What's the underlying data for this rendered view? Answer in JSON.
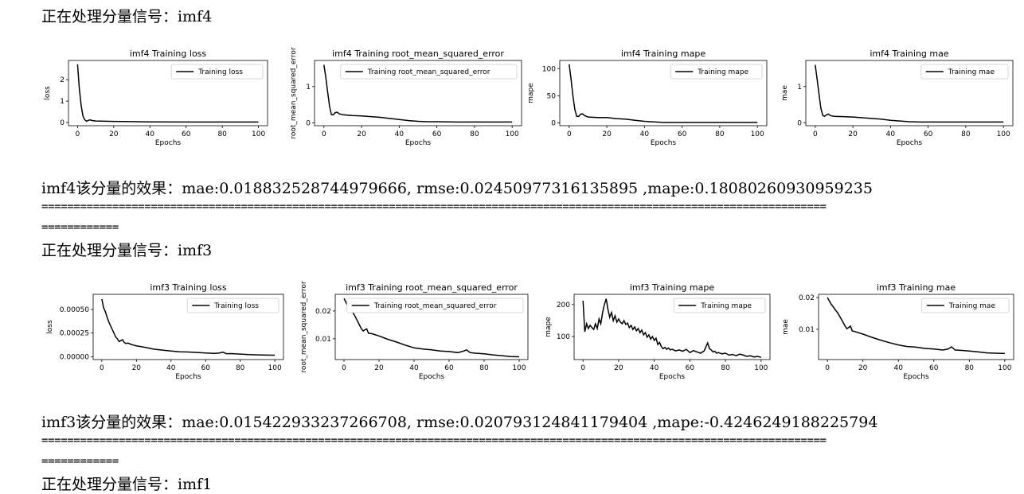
{
  "blocks": [
    {
      "header": "正在处理分量信号：imf4",
      "result": "imf4该分量的效果：mae:0.018832528744979666, rmse:0.02450977316135895 ,mape:0.18080260930959235",
      "separator_1": "==========================================================================================================================",
      "separator_2": "============"
    },
    {
      "header": "正在处理分量信号：imf3",
      "result": "imf3该分量的效果：mae:0.015422933237266708, rmse:0.020793124841179404 ,mape:-0.4246249188225794",
      "separator_1": "==========================================================================================================================",
      "separator_2": "============"
    },
    {
      "header": "正在处理分量信号：imf1"
    }
  ],
  "chart_data": [
    {
      "type": "line",
      "title": "imf4 Training loss",
      "xlabel": "Epochs",
      "ylabel": "loss",
      "xlim": [
        -5,
        105
      ],
      "ylim": [
        -0.15,
        2.9
      ],
      "xticks": [
        0,
        20,
        40,
        60,
        80,
        100
      ],
      "yticks": [
        0,
        1,
        2
      ],
      "ytick_labels": [
        "0",
        "1",
        "2"
      ],
      "legend": "top-right",
      "series": [
        {
          "name": "Training loss",
          "x": [
            0,
            1,
            2,
            3,
            4,
            5,
            6,
            7,
            8,
            10,
            15,
            20,
            30,
            40,
            60,
            80,
            100
          ],
          "y": [
            2.72,
            1.6,
            0.8,
            0.3,
            0.12,
            0.06,
            0.1,
            0.12,
            0.09,
            0.07,
            0.06,
            0.05,
            0.04,
            0.03,
            0.02,
            0.02,
            0.02
          ]
        }
      ]
    },
    {
      "type": "line",
      "title": "imf4 Training root_mean_squared_error",
      "xlabel": "Epochs",
      "ylabel": "root_mean_squared_error",
      "xlim": [
        -5,
        105
      ],
      "ylim": [
        -0.08,
        1.72
      ],
      "xticks": [
        0,
        20,
        40,
        60,
        80,
        100
      ],
      "yticks": [
        0,
        1
      ],
      "ytick_labels": [
        "0",
        "1"
      ],
      "legend": "top-right",
      "series": [
        {
          "name": "Training root_mean_squared_error",
          "x": [
            0,
            1,
            2,
            3,
            4,
            5,
            6,
            7,
            8,
            10,
            15,
            20,
            25,
            30,
            35,
            40,
            45,
            50,
            55,
            60,
            70,
            80,
            100
          ],
          "y": [
            1.6,
            1.25,
            0.85,
            0.45,
            0.22,
            0.22,
            0.28,
            0.29,
            0.25,
            0.22,
            0.2,
            0.19,
            0.17,
            0.15,
            0.12,
            0.09,
            0.06,
            0.04,
            0.03,
            0.03,
            0.02,
            0.02,
            0.02
          ]
        }
      ]
    },
    {
      "type": "line",
      "title": "imf4 Training mape",
      "xlabel": "Epochs",
      "ylabel": "mape",
      "xlim": [
        -5,
        105
      ],
      "ylim": [
        -5,
        115
      ],
      "xticks": [
        0,
        20,
        40,
        60,
        80,
        100
      ],
      "yticks": [
        0,
        50,
        100
      ],
      "ytick_labels": [
        "0",
        "50",
        "100"
      ],
      "legend": "top-right",
      "series": [
        {
          "name": "Training mape",
          "x": [
            0,
            1,
            2,
            3,
            4,
            5,
            6,
            7,
            8,
            10,
            15,
            20,
            25,
            30,
            35,
            40,
            45,
            50,
            55,
            60,
            70,
            80,
            100
          ],
          "y": [
            108,
            80,
            50,
            25,
            12,
            12,
            16,
            17,
            14,
            11,
            10,
            10,
            8,
            7,
            5,
            3,
            2,
            1,
            1,
            1,
            1,
            1,
            1
          ]
        }
      ]
    },
    {
      "type": "line",
      "title": "imf4 Training mae",
      "xlabel": "Epochs",
      "ylabel": "mae",
      "xlim": [
        -5,
        105
      ],
      "ylim": [
        -0.08,
        1.72
      ],
      "xticks": [
        0,
        20,
        40,
        60,
        80,
        100
      ],
      "yticks": [
        0,
        1
      ],
      "ytick_labels": [
        "0",
        "1"
      ],
      "legend": "top-right",
      "series": [
        {
          "name": "Training mae",
          "x": [
            0,
            1,
            2,
            3,
            4,
            5,
            6,
            7,
            8,
            10,
            15,
            20,
            25,
            30,
            35,
            40,
            45,
            50,
            55,
            60,
            70,
            80,
            100
          ],
          "y": [
            1.6,
            1.2,
            0.8,
            0.4,
            0.2,
            0.18,
            0.22,
            0.24,
            0.2,
            0.18,
            0.17,
            0.16,
            0.14,
            0.12,
            0.1,
            0.07,
            0.05,
            0.03,
            0.02,
            0.02,
            0.02,
            0.02,
            0.02
          ]
        }
      ]
    },
    {
      "type": "line",
      "title": "imf3 Training loss",
      "xlabel": "Epochs",
      "ylabel": "loss",
      "xlim": [
        -5,
        105
      ],
      "ylim": [
        -3e-05,
        0.00066
      ],
      "xticks": [
        0,
        20,
        40,
        60,
        80,
        100
      ],
      "yticks": [
        0,
        0.00025,
        0.0005
      ],
      "ytick_labels": [
        "0.00000",
        "0.00025",
        "0.00050"
      ],
      "legend": "top-right",
      "series": [
        {
          "name": "Training loss",
          "x": [
            0,
            1,
            2,
            3,
            4,
            5,
            6,
            7,
            8,
            9,
            10,
            11,
            12,
            13,
            14,
            15,
            17,
            20,
            25,
            30,
            35,
            40,
            45,
            50,
            55,
            60,
            65,
            68,
            70,
            72,
            75,
            80,
            85,
            90,
            95,
            100
          ],
          "y": [
            0.00061,
            0.00052,
            0.00048,
            0.00042,
            0.00037,
            0.00033,
            0.00029,
            0.00025,
            0.00021,
            0.00019,
            0.00016,
            0.00017,
            0.00018,
            0.00015,
            0.00014,
            0.000145,
            0.00013,
            0.000115,
            0.0001,
            8e-05,
            7e-05,
            6e-05,
            5.2e-05,
            5e-05,
            4.5e-05,
            4e-05,
            3.5e-05,
            4e-05,
            4.8e-05,
            3.2e-05,
            3.3e-05,
            2.8e-05,
            2.2e-05,
            2e-05,
            1.7e-05,
            1.6e-05
          ]
        }
      ]
    },
    {
      "type": "line",
      "title": "imf3 Training root_mean_squared_error",
      "xlabel": "Epochs",
      "ylabel": "root_mean_squared_error",
      "xlim": [
        -5,
        105
      ],
      "ylim": [
        0.0025,
        0.026
      ],
      "xticks": [
        0,
        20,
        40,
        60,
        80,
        100
      ],
      "yticks": [
        0.01,
        0.02
      ],
      "ytick_labels": [
        "0.01",
        "0.02"
      ],
      "legend": "top-right",
      "series": [
        {
          "name": "Training root_mean_squared_error",
          "x": [
            0,
            2,
            4,
            6,
            8,
            10,
            11,
            12,
            13,
            14,
            16,
            20,
            25,
            30,
            35,
            40,
            45,
            50,
            55,
            60,
            65,
            68,
            70,
            72,
            75,
            80,
            85,
            90,
            95,
            100
          ],
          "y": [
            0.0245,
            0.022,
            0.0205,
            0.0185,
            0.016,
            0.0135,
            0.0128,
            0.0133,
            0.0135,
            0.012,
            0.0118,
            0.011,
            0.0098,
            0.0088,
            0.0077,
            0.0067,
            0.0063,
            0.006,
            0.0056,
            0.0054,
            0.005,
            0.0055,
            0.006,
            0.005,
            0.0048,
            0.0046,
            0.0042,
            0.0039,
            0.0036,
            0.0035
          ]
        }
      ]
    },
    {
      "type": "line",
      "title": "imf3 Training mape",
      "xlabel": "Epochs",
      "ylabel": "mape",
      "xlim": [
        -5,
        105
      ],
      "ylim": [
        28,
        232
      ],
      "xticks": [
        0,
        20,
        40,
        60,
        80,
        100
      ],
      "yticks": [
        100,
        200
      ],
      "ytick_labels": [
        "100",
        "200"
      ],
      "legend": "top-right",
      "series": [
        {
          "name": "Training mape",
          "x": [
            0,
            1,
            2,
            3,
            4,
            5,
            6,
            7,
            8,
            9,
            10,
            11,
            12,
            13,
            14,
            15,
            16,
            17,
            18,
            19,
            20,
            21,
            22,
            23,
            24,
            25,
            26,
            27,
            28,
            29,
            30,
            31,
            32,
            33,
            34,
            35,
            36,
            37,
            38,
            39,
            40,
            41,
            42,
            43,
            44,
            45,
            46,
            47,
            48,
            49,
            50,
            52,
            54,
            56,
            58,
            60,
            62,
            64,
            66,
            68,
            70,
            71,
            72,
            73,
            74,
            75,
            76,
            78,
            80,
            82,
            84,
            86,
            88,
            90,
            92,
            94,
            96,
            98,
            100
          ],
          "y": [
            212,
            115,
            140,
            125,
            135,
            128,
            122,
            140,
            125,
            155,
            140,
            175,
            200,
            218,
            185,
            160,
            175,
            150,
            165,
            145,
            155,
            145,
            140,
            150,
            138,
            142,
            128,
            135,
            122,
            130,
            118,
            125,
            112,
            120,
            105,
            112,
            98,
            105,
            92,
            100,
            88,
            95,
            75,
            82,
            68,
            62,
            66,
            60,
            64,
            58,
            60,
            55,
            58,
            54,
            60,
            50,
            56,
            52,
            48,
            55,
            80,
            62,
            58,
            52,
            54,
            48,
            50,
            46,
            48,
            42,
            44,
            40,
            45,
            42,
            38,
            40,
            36,
            38,
            35
          ]
        }
      ]
    },
    {
      "type": "line",
      "title": "imf3 Training mae",
      "xlabel": "Epochs",
      "ylabel": "mae",
      "xlim": [
        -5,
        105
      ],
      "ylim": [
        0.0005,
        0.021
      ],
      "xticks": [
        0,
        20,
        40,
        60,
        80,
        100
      ],
      "yticks": [
        0.01,
        0.02
      ],
      "ytick_labels": [
        "0.01",
        "0.02"
      ],
      "legend": "top-right",
      "series": [
        {
          "name": "Training mae",
          "x": [
            0,
            2,
            4,
            6,
            8,
            10,
            11,
            12,
            13,
            14,
            16,
            20,
            25,
            30,
            35,
            40,
            45,
            50,
            55,
            60,
            65,
            68,
            70,
            72,
            75,
            80,
            85,
            90,
            95,
            100
          ],
          "y": [
            0.02,
            0.018,
            0.0165,
            0.015,
            0.013,
            0.011,
            0.0102,
            0.0106,
            0.011,
            0.0095,
            0.0092,
            0.0085,
            0.0075,
            0.0066,
            0.0058,
            0.0051,
            0.0046,
            0.0044,
            0.004,
            0.0038,
            0.0035,
            0.0038,
            0.0045,
            0.0035,
            0.0034,
            0.0032,
            0.0029,
            0.0026,
            0.0025,
            0.0024
          ]
        }
      ]
    }
  ]
}
